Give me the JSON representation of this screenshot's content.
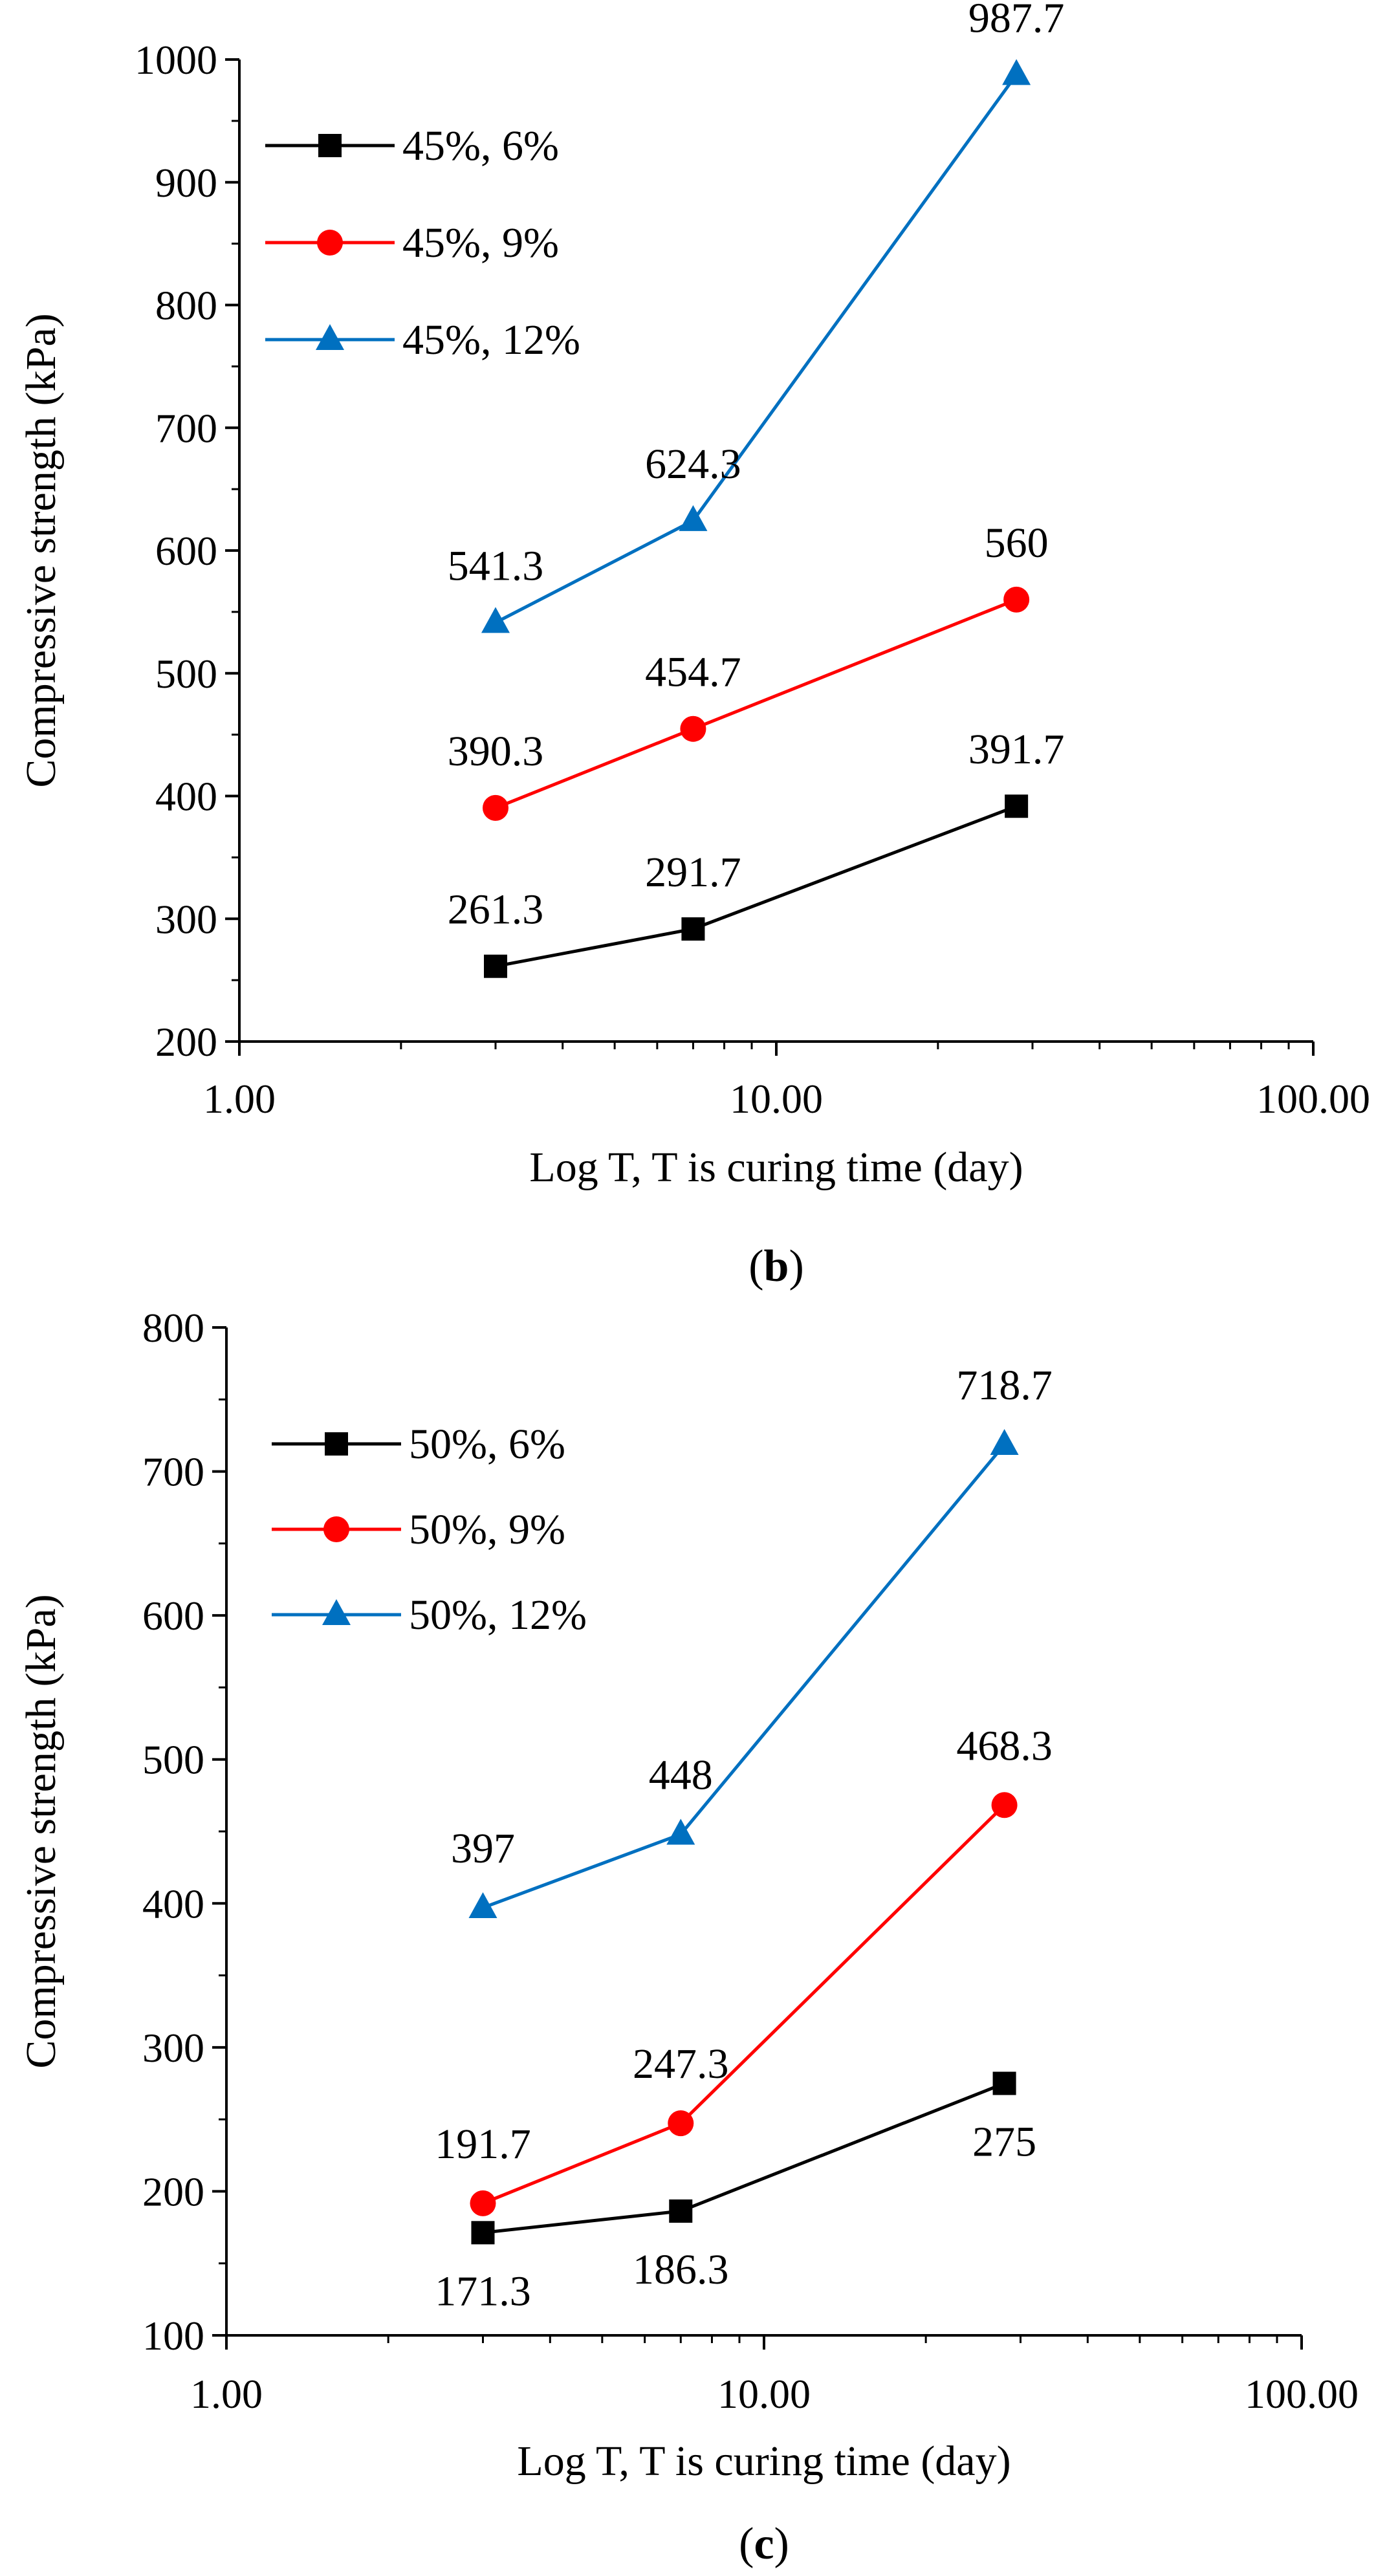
{
  "chart_data": [
    {
      "type": "line",
      "panel": "b",
      "caption_prefix": "(",
      "caption_letter": "b",
      "caption_suffix": ")",
      "x_scale": "log",
      "xlim": [
        1,
        100
      ],
      "ylim": [
        200,
        1000
      ],
      "xlabel": "Log T,  T is curing time (day)",
      "ylabel": "Compressive strength (kPa)",
      "x_ticks": [
        1,
        10,
        100
      ],
      "x_tick_labels": [
        "1.00",
        "10.00",
        "100.00"
      ],
      "y_ticks": [
        200,
        300,
        400,
        500,
        600,
        700,
        800,
        900,
        1000
      ],
      "y_tick_labels": [
        "200",
        "300",
        "400",
        "500",
        "600",
        "700",
        "800",
        "900",
        "1000"
      ],
      "legend_position": "top-left",
      "series": [
        {
          "name": "45%, 6%",
          "color": "#000000",
          "marker": "square",
          "x": [
            3,
            7,
            28
          ],
          "values": [
            261.3,
            291.7,
            391.7
          ],
          "labels": [
            "261.3",
            "291.7",
            "391.7"
          ],
          "label_side": [
            "above",
            "above",
            "above"
          ]
        },
        {
          "name": "45%, 9%",
          "color": "#ff0000",
          "marker": "circle",
          "x": [
            3,
            7,
            28
          ],
          "values": [
            390.3,
            454.7,
            560
          ],
          "labels": [
            "390.3",
            "454.7",
            "560"
          ],
          "label_side": [
            "above",
            "above",
            "above"
          ]
        },
        {
          "name": "45%, 12%",
          "color": "#0070c0",
          "marker": "triangle",
          "x": [
            3,
            7,
            28
          ],
          "values": [
            541.3,
            624.3,
            987.7
          ],
          "labels": [
            "541.3",
            "624.3",
            "987.7"
          ],
          "label_side": [
            "above",
            "above",
            "above"
          ]
        }
      ]
    },
    {
      "type": "line",
      "panel": "c",
      "caption_prefix": "(",
      "caption_letter": "c",
      "caption_suffix": ")",
      "x_scale": "log",
      "xlim": [
        1,
        100
      ],
      "ylim": [
        100,
        800
      ],
      "xlabel": "Log T,  T is curing time (day)",
      "ylabel": "Compressive strength (kPa)",
      "x_ticks": [
        1,
        10,
        100
      ],
      "x_tick_labels": [
        "1.00",
        "10.00",
        "100.00"
      ],
      "y_ticks": [
        100,
        200,
        300,
        400,
        500,
        600,
        700,
        800
      ],
      "y_tick_labels": [
        "100",
        "200",
        "300",
        "400",
        "500",
        "600",
        "700",
        "800"
      ],
      "legend_position": "top-left",
      "series": [
        {
          "name": "50%, 6%",
          "color": "#000000",
          "marker": "square",
          "x": [
            3,
            7,
            28
          ],
          "values": [
            171.3,
            186.3,
            275
          ],
          "labels": [
            "171.3",
            "186.3",
            "275"
          ],
          "label_side": [
            "below",
            "below",
            "below"
          ]
        },
        {
          "name": "50%, 9%",
          "color": "#ff0000",
          "marker": "circle",
          "x": [
            3,
            7,
            28
          ],
          "values": [
            191.7,
            247.3,
            468.3
          ],
          "labels": [
            "191.7",
            "247.3",
            "468.3"
          ],
          "label_side": [
            "above",
            "above",
            "above"
          ]
        },
        {
          "name": "50%, 12%",
          "color": "#0070c0",
          "marker": "triangle",
          "x": [
            3,
            7,
            28
          ],
          "values": [
            397,
            448,
            718.7
          ],
          "labels": [
            "397",
            "448",
            "718.7"
          ],
          "label_side": [
            "above",
            "above",
            "above"
          ]
        }
      ]
    }
  ]
}
